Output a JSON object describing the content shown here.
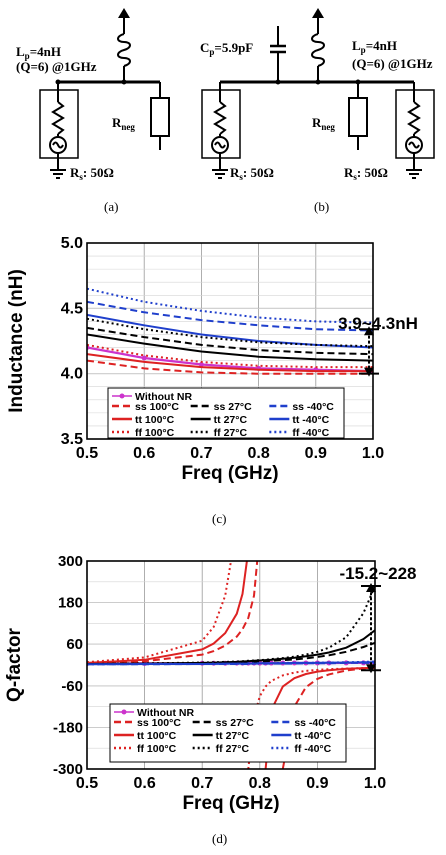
{
  "figure": {
    "panels": [
      {
        "label": "(a)"
      },
      {
        "label": "(b)"
      },
      {
        "label": "(c)"
      },
      {
        "label": "(d)"
      }
    ]
  },
  "circuit_a": {
    "lp_line1": "L",
    "lp_sub": "p",
    "lp_value": "=4nH",
    "q_line": "(Q=6) @1GHz",
    "rneg": "R",
    "rneg_sub": "neg",
    "rs": "R",
    "rs_sub": "s",
    "rs_value": ": 50Ω"
  },
  "circuit_b": {
    "cp": "C",
    "cp_sub": "p",
    "cp_value": "=5.9pF",
    "lp": "L",
    "lp_sub": "p",
    "lp_value": "=4nH",
    "q_line": "(Q=6) @1GHz",
    "rneg": "R",
    "rneg_sub": "neg",
    "rs_left": "R",
    "rs_left_sub": "s",
    "rs_left_value": ": 50Ω",
    "rs_right": "R",
    "rs_right_sub": "s",
    "rs_right_value": ": 50Ω"
  },
  "legend_entries": [
    {
      "label": "Without NR",
      "color": "#cc33cc",
      "style": "marker"
    },
    {
      "label": "ss 100°C",
      "color": "#dd2222",
      "style": "dash"
    },
    {
      "label": "ss 27°C",
      "color": "#000000",
      "style": "dash"
    },
    {
      "label": "ss -40°C",
      "color": "#1f3fcc",
      "style": "dash"
    },
    {
      "label": "tt 100°C",
      "color": "#dd2222",
      "style": "solid"
    },
    {
      "label": "tt 27°C",
      "color": "#000000",
      "style": "solid"
    },
    {
      "label": "tt -40°C",
      "color": "#1f3fcc",
      "style": "solid"
    },
    {
      "label": "ff 100°C",
      "color": "#dd2222",
      "style": "dot"
    },
    {
      "label": "ff 27°C",
      "color": "#000000",
      "style": "dot"
    },
    {
      "label": "ff -40°C",
      "color": "#1f3fcc",
      "style": "dot"
    }
  ],
  "chart_data": [
    {
      "type": "line",
      "xlabel": "Freq (GHz)",
      "ylabel": "Inductance (nH)",
      "xlim": [
        0.5,
        1.0
      ],
      "ylim": [
        3.5,
        5.0
      ],
      "xticks": [
        "0.5",
        "0.6",
        "0.7",
        "0.8",
        "0.9",
        "1.0"
      ],
      "yticks": [
        "3.5",
        "4.0",
        "4.5",
        "5.0"
      ],
      "grid": true,
      "legend": "bottom-center",
      "annotation": "3.9~4.3nH",
      "annotation_range": [
        4.0,
        4.34
      ],
      "x": [
        0.5,
        0.6,
        0.7,
        0.8,
        0.9,
        1.0
      ],
      "series": [
        {
          "name": "Without NR",
          "values": [
            4.2,
            4.12,
            4.07,
            4.04,
            4.03,
            4.02
          ]
        },
        {
          "name": "ss 100°C",
          "values": [
            4.1,
            4.04,
            4.01,
            4.0,
            4.0,
            4.0
          ]
        },
        {
          "name": "ss 27°C",
          "values": [
            4.35,
            4.28,
            4.22,
            4.18,
            4.16,
            4.15
          ]
        },
        {
          "name": "ss -40°C",
          "values": [
            4.55,
            4.47,
            4.41,
            4.37,
            4.34,
            4.33
          ]
        },
        {
          "name": "tt 100°C",
          "values": [
            4.15,
            4.09,
            4.05,
            4.03,
            4.02,
            4.02
          ]
        },
        {
          "name": "tt 27°C",
          "values": [
            4.3,
            4.23,
            4.17,
            4.13,
            4.11,
            4.1
          ]
        },
        {
          "name": "tt -40°C",
          "values": [
            4.45,
            4.37,
            4.3,
            4.25,
            4.22,
            4.2
          ]
        },
        {
          "name": "ff 100°C",
          "values": [
            4.22,
            4.14,
            4.09,
            4.06,
            4.05,
            4.05
          ]
        },
        {
          "name": "ff 27°C",
          "values": [
            4.42,
            4.34,
            4.28,
            4.24,
            4.22,
            4.21
          ]
        },
        {
          "name": "ff -40°C",
          "values": [
            4.65,
            4.55,
            4.48,
            4.43,
            4.4,
            4.39
          ]
        }
      ]
    },
    {
      "type": "line",
      "xlabel": "Freq (GHz)",
      "ylabel": "Q-factor",
      "xlim": [
        0.5,
        1.0
      ],
      "ylim": [
        -300,
        300
      ],
      "xticks": [
        "0.5",
        "0.6",
        "0.7",
        "0.8",
        "0.9",
        "1.0"
      ],
      "yticks": [
        "-300",
        "-180",
        "-60",
        "60",
        "180",
        "300"
      ],
      "grid": true,
      "legend": "bottom-center",
      "annotation": "-15.2~228",
      "annotation_range": [
        -15.2,
        228
      ],
      "x": [
        0.5,
        0.6,
        0.7,
        0.72,
        0.74,
        0.76,
        0.77,
        0.78,
        0.79,
        0.8,
        0.81,
        0.82,
        0.84,
        0.86,
        0.88,
        0.9,
        0.92,
        0.95,
        0.98,
        1.0
      ],
      "series": [
        {
          "name": "Without NR",
          "values": [
            4,
            4.5,
            5,
            5.1,
            5.2,
            5.3,
            5.3,
            5.4,
            5.4,
            5.5,
            5.5,
            5.6,
            5.6,
            5.7,
            5.8,
            5.9,
            5.9,
            6,
            6,
            6
          ]
        },
        {
          "name": "ss 100°C",
          "values": [
            5,
            11,
            30,
            40,
            56,
            82,
            103,
            136,
            200,
            380,
            null,
            null,
            -300,
            -120,
            -64,
            -40,
            -27,
            -16,
            -10,
            -8
          ]
        },
        {
          "name": "ss 27°C",
          "values": [
            3,
            4,
            5,
            6,
            7,
            8,
            8,
            9,
            9,
            10,
            11,
            12,
            14,
            16,
            19,
            23,
            28,
            38,
            52,
            64
          ]
        },
        {
          "name": "ss -40°C",
          "values": [
            2,
            2,
            3,
            3,
            3,
            3,
            3,
            3,
            4,
            4,
            4,
            4,
            4,
            4,
            5,
            5,
            5,
            6,
            6,
            6
          ]
        },
        {
          "name": "tt 100°C",
          "values": [
            6,
            15,
            45,
            62,
            92,
            148,
            205,
            330,
            null,
            null,
            -300,
            -130,
            -62,
            -38,
            -26,
            -19,
            -15,
            -11,
            -9,
            -8
          ]
        },
        {
          "name": "tt 27°C",
          "values": [
            3,
            4,
            6,
            7,
            8,
            9,
            10,
            11,
            12,
            13,
            14,
            15,
            18,
            21,
            25,
            30,
            36,
            50,
            75,
            100
          ]
        },
        {
          "name": "tt -40°C",
          "values": [
            2,
            3,
            3,
            3,
            4,
            4,
            4,
            4,
            4,
            5,
            5,
            5,
            5,
            6,
            6,
            6,
            7,
            7,
            8,
            8
          ]
        },
        {
          "name": "ff 100°C",
          "values": [
            8,
            22,
            70,
            110,
            200,
            400,
            null,
            -300,
            -150,
            -90,
            -62,
            -46,
            -30,
            -22,
            -17,
            -14,
            -12,
            -10,
            -9,
            -8
          ]
        },
        {
          "name": "ff 27°C",
          "values": [
            3,
            5,
            7,
            8,
            9,
            10,
            11,
            12,
            13,
            14,
            15,
            17,
            20,
            24,
            30,
            38,
            50,
            80,
            150,
            228
          ]
        },
        {
          "name": "ff -40°C",
          "values": [
            2,
            3,
            3,
            4,
            4,
            4,
            4,
            5,
            5,
            5,
            5,
            5,
            6,
            6,
            6,
            7,
            7,
            8,
            9,
            10
          ]
        }
      ]
    }
  ]
}
